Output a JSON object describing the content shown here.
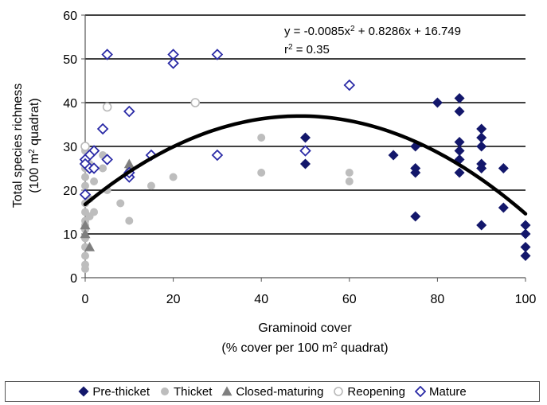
{
  "chart_data": {
    "type": "scatter",
    "xlabel_line1": "Graminoid cover",
    "xlabel_line2_pre": "(% cover per 100 m",
    "xlabel_line2_sup": "2",
    "xlabel_line2_post": " quadrat)",
    "ylabel_line1": "Total species richness",
    "ylabel_line2_pre": "(100 m",
    "ylabel_line2_sup": "2",
    "ylabel_line2_post": " quadrat)",
    "xlim": [
      0,
      100
    ],
    "ylim": [
      0,
      60
    ],
    "xticks": [
      0,
      20,
      40,
      60,
      80,
      100
    ],
    "yticks": [
      0,
      10,
      20,
      30,
      40,
      50,
      60
    ],
    "gridlines": "horizontal",
    "legend_position": "bottom",
    "fit": {
      "equation_pre": "y = -0.0085x",
      "equation_sup": "2",
      "equation_post": " + 0.8286x + 16.749",
      "r2_pre": "r",
      "r2_sup": "2",
      "r2_post": " = 0.35",
      "a": -0.0085,
      "b": 0.8286,
      "c": 16.749
    },
    "series": [
      {
        "name": "Pre-thicket",
        "marker": "filled-diamond",
        "color": "#13176b",
        "points": [
          [
            50,
            32
          ],
          [
            50,
            26
          ],
          [
            70,
            28
          ],
          [
            75,
            30
          ],
          [
            75,
            25
          ],
          [
            75,
            24
          ],
          [
            75,
            14
          ],
          [
            80,
            40
          ],
          [
            85,
            41
          ],
          [
            85,
            38
          ],
          [
            85,
            31
          ],
          [
            85,
            29
          ],
          [
            85,
            27
          ],
          [
            85,
            24
          ],
          [
            90,
            34
          ],
          [
            90,
            32
          ],
          [
            90,
            30
          ],
          [
            90,
            26
          ],
          [
            90,
            25
          ],
          [
            90,
            12
          ],
          [
            95,
            25
          ],
          [
            95,
            16
          ],
          [
            100,
            12
          ],
          [
            100,
            10
          ],
          [
            100,
            7
          ],
          [
            100,
            5
          ]
        ]
      },
      {
        "name": "Thicket",
        "marker": "filled-circle",
        "color": "#bdbdbd",
        "points": [
          [
            0,
            29
          ],
          [
            0,
            27
          ],
          [
            0,
            25
          ],
          [
            0,
            23
          ],
          [
            0,
            21
          ],
          [
            0,
            19
          ],
          [
            0,
            17
          ],
          [
            0,
            15
          ],
          [
            0,
            13
          ],
          [
            0,
            12
          ],
          [
            0,
            11
          ],
          [
            0,
            9
          ],
          [
            0,
            7
          ],
          [
            0,
            5
          ],
          [
            0,
            3
          ],
          [
            0,
            2
          ],
          [
            1,
            26
          ],
          [
            1,
            18
          ],
          [
            1,
            14
          ],
          [
            2,
            22
          ],
          [
            2,
            15
          ],
          [
            4,
            28
          ],
          [
            4,
            25
          ],
          [
            5,
            20
          ],
          [
            8,
            17
          ],
          [
            10,
            13
          ],
          [
            15,
            21
          ],
          [
            20,
            23
          ],
          [
            40,
            32
          ],
          [
            40,
            24
          ],
          [
            50,
            26
          ],
          [
            60,
            24
          ],
          [
            60,
            22
          ]
        ]
      },
      {
        "name": "Closed-maturing",
        "marker": "filled-triangle",
        "color": "#7f7f7f",
        "points": [
          [
            0,
            12
          ],
          [
            0,
            10
          ],
          [
            1,
            7
          ],
          [
            10,
            26
          ],
          [
            10,
            25
          ]
        ]
      },
      {
        "name": "Reopening",
        "marker": "open-circle",
        "color": "#b8b8b8",
        "points": [
          [
            0,
            30
          ],
          [
            5,
            39
          ],
          [
            25,
            40
          ]
        ]
      },
      {
        "name": "Mature",
        "marker": "open-diamond",
        "color": "#2a2aa6",
        "points": [
          [
            5,
            51
          ],
          [
            20,
            51
          ],
          [
            20,
            49
          ],
          [
            30,
            51
          ],
          [
            60,
            44
          ],
          [
            10,
            38
          ],
          [
            4,
            34
          ],
          [
            2,
            29
          ],
          [
            1,
            28
          ],
          [
            0,
            27
          ],
          [
            0,
            26
          ],
          [
            1,
            25
          ],
          [
            2,
            25
          ],
          [
            5,
            27
          ],
          [
            10,
            23
          ],
          [
            10,
            24
          ],
          [
            15,
            28
          ],
          [
            30,
            28
          ],
          [
            50,
            29
          ],
          [
            0,
            19
          ]
        ]
      }
    ]
  }
}
